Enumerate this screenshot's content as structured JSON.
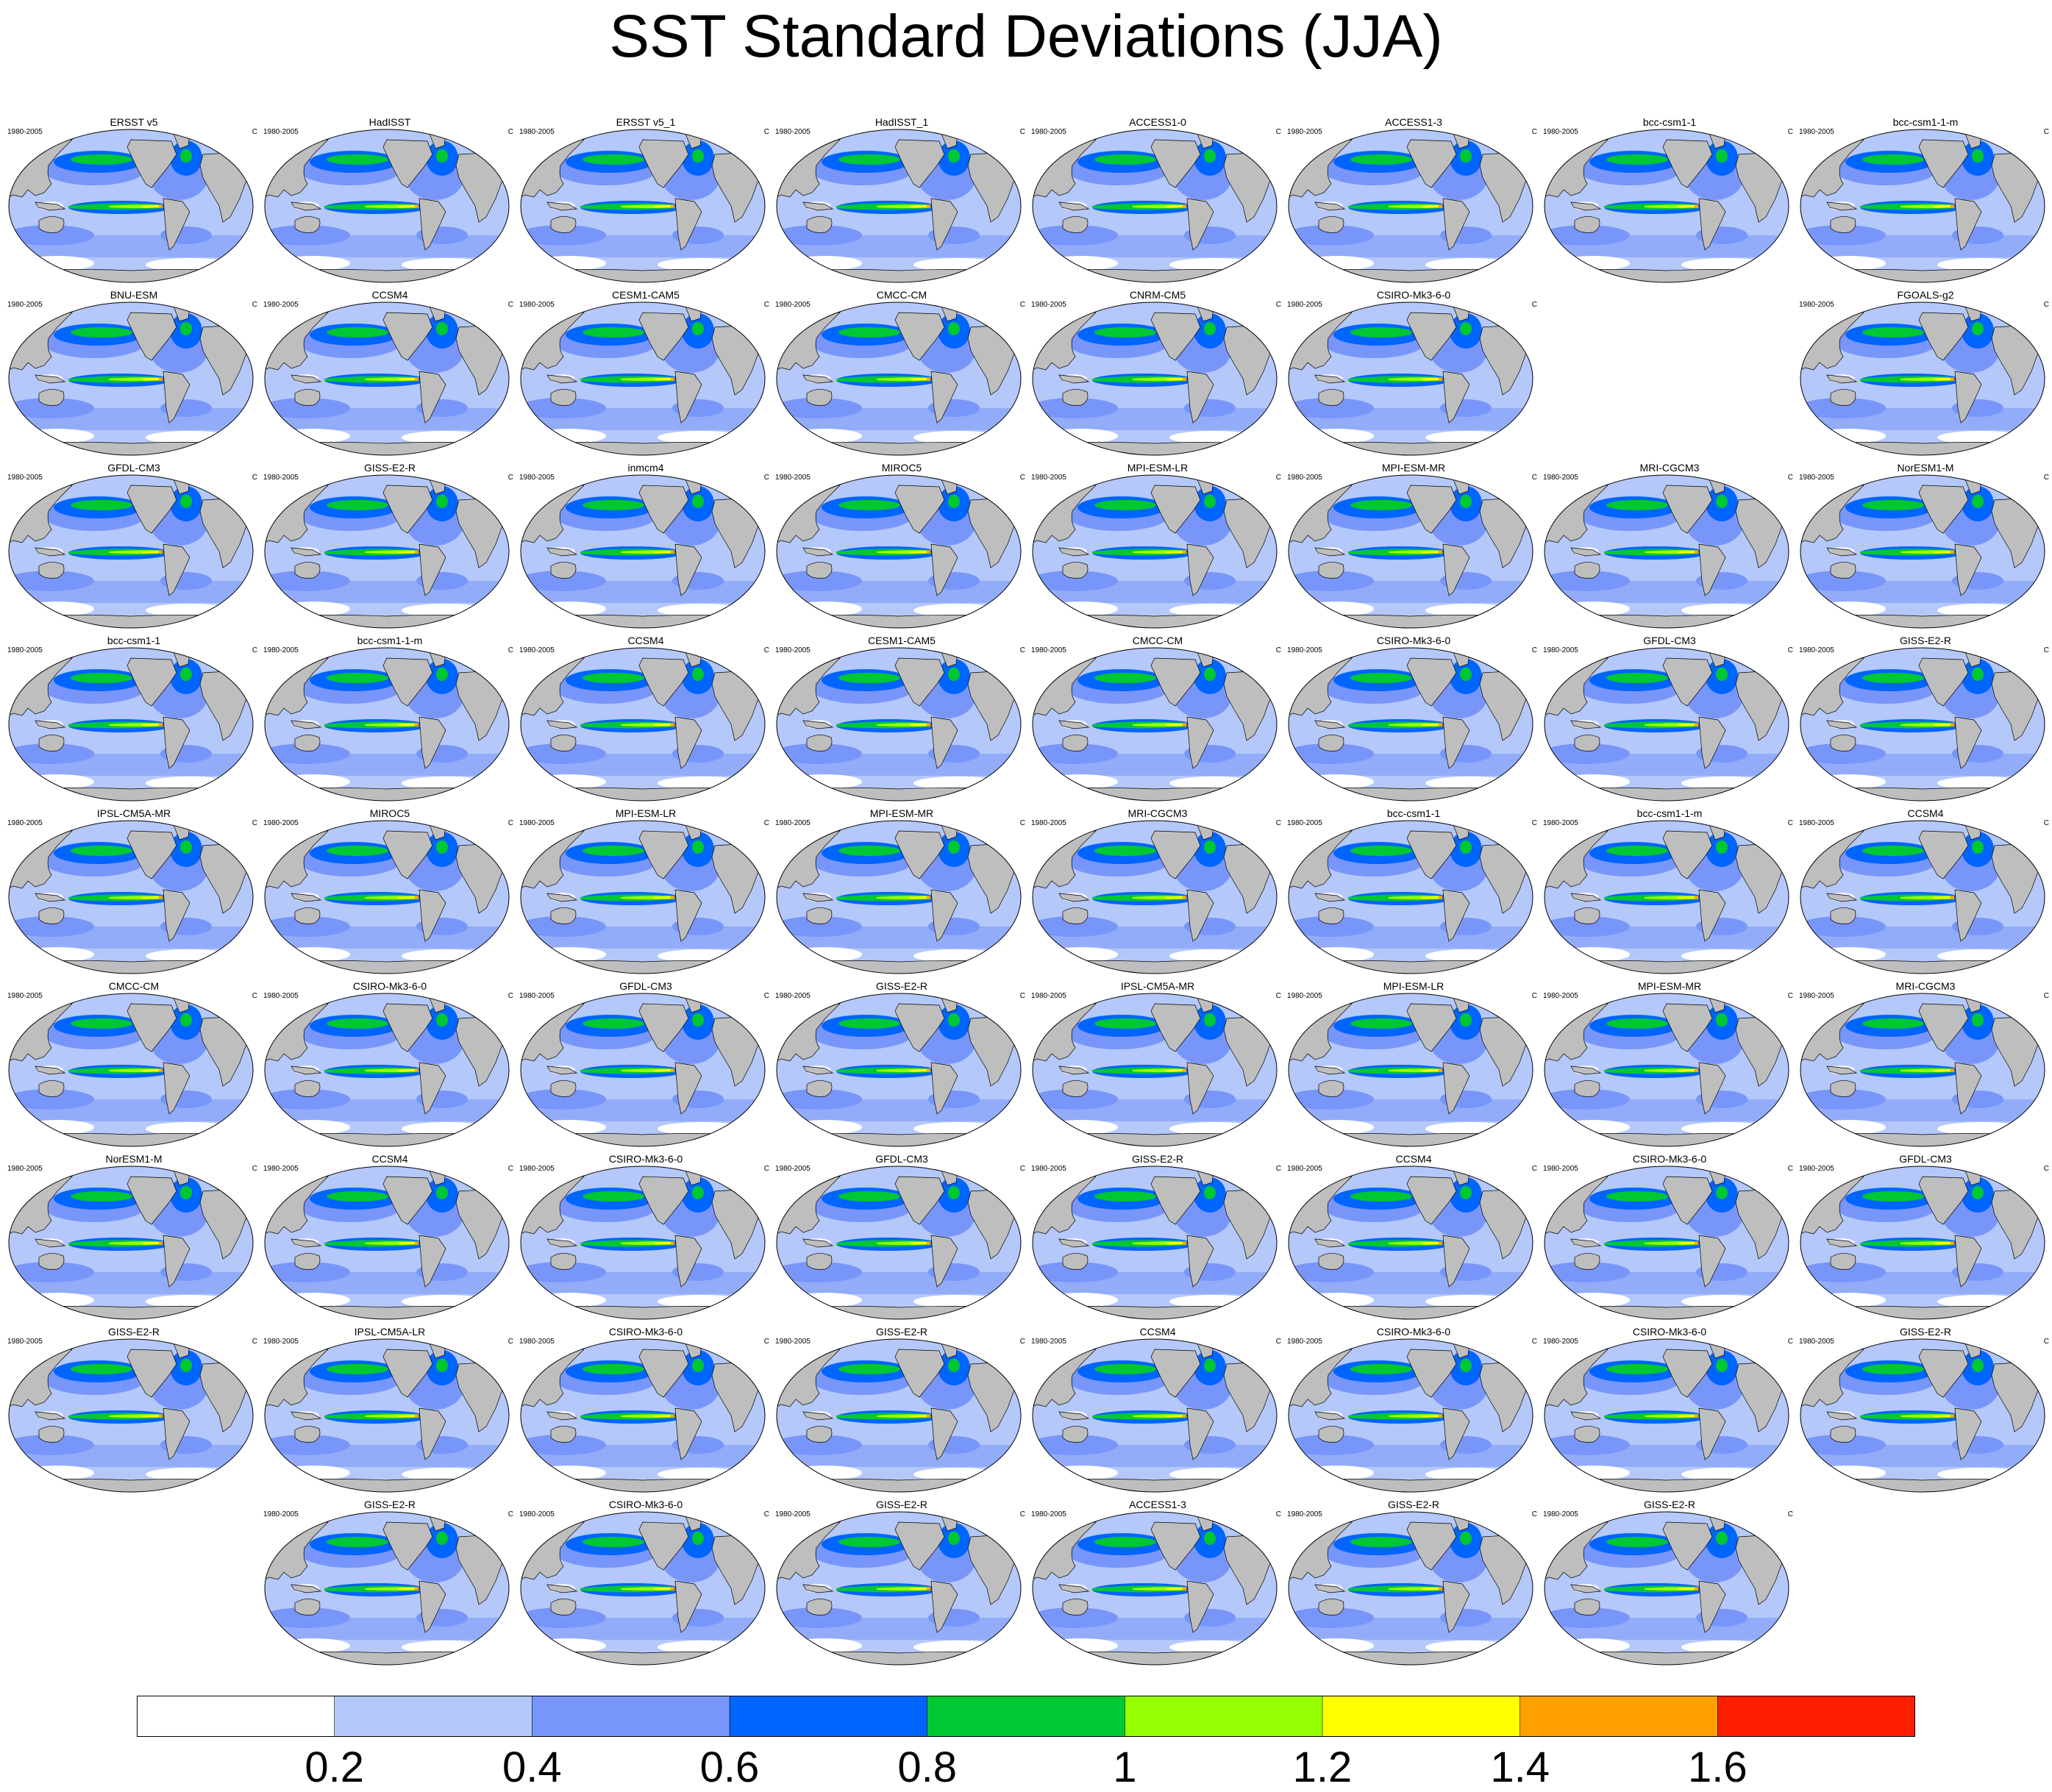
{
  "title": "SST Standard Deviations (JJA)",
  "period": "1980-2005",
  "units": "C",
  "grid_rows": [
    [
      "ERSST v5",
      "HadISST",
      "ERSST v5_1",
      "HadISST_1",
      "ACCESS1-0",
      "ACCESS1-3",
      "bcc-csm1-1",
      "bcc-csm1-1-m"
    ],
    [
      "BNU-ESM",
      "CCSM4",
      "CESM1-CAM5",
      "CMCC-CM",
      "CNRM-CM5",
      "CSIRO-Mk3-6-0",
      null,
      "FGOALS-g2"
    ],
    [
      "GFDL-CM3",
      "GISS-E2-R",
      "inmcm4",
      "MIROC5",
      "MPI-ESM-LR",
      "MPI-ESM-MR",
      "MRI-CGCM3",
      "NorESM1-M"
    ],
    [
      "bcc-csm1-1",
      "bcc-csm1-1-m",
      "CCSM4",
      "CESM1-CAM5",
      "CMCC-CM",
      "CSIRO-Mk3-6-0",
      "GFDL-CM3",
      "GISS-E2-R"
    ],
    [
      "IPSL-CM5A-MR",
      "MIROC5",
      "MPI-ESM-LR",
      "MPI-ESM-MR",
      "MRI-CGCM3",
      "bcc-csm1-1",
      "bcc-csm1-1-m",
      "CCSM4"
    ],
    [
      "CMCC-CM",
      "CSIRO-Mk3-6-0",
      "GFDL-CM3",
      "GISS-E2-R",
      "IPSL-CM5A-MR",
      "MPI-ESM-LR",
      "MPI-ESM-MR",
      "MRI-CGCM3"
    ],
    [
      "NorESM1-M",
      "CCSM4",
      "CSIRO-Mk3-6-0",
      "GFDL-CM3",
      "GISS-E2-R",
      "CCSM4",
      "CSIRO-Mk3-6-0",
      "GFDL-CM3"
    ],
    [
      "GISS-E2-R",
      "IPSL-CM5A-LR",
      "CSIRO-Mk3-6-0",
      "GISS-E2-R",
      "CCSM4",
      "CSIRO-Mk3-6-0",
      "CSIRO-Mk3-6-0",
      "GISS-E2-R"
    ],
    [
      null,
      "GISS-E2-R",
      "CSIRO-Mk3-6-0",
      "GISS-E2-R",
      "ACCESS1-3",
      "GISS-E2-R",
      "GISS-E2-R",
      null
    ]
  ],
  "colorbar": {
    "colors": [
      "#ffffff",
      "#b4c8fa",
      "#7896fa",
      "#0064ff",
      "#00c832",
      "#96ff00",
      "#ffff00",
      "#ffa000",
      "#ff1e00"
    ],
    "tick_labels": [
      "0.2",
      "0.4",
      "0.6",
      "0.8",
      "1",
      "1.2",
      "1.4",
      "1.6"
    ]
  },
  "map_colors": {
    "land": "#bebebe",
    "ocean_background": "#b4c8fa",
    "ocean_mid": "#7896fa",
    "ocean_high": "#0064ff",
    "band_1": "#00c832",
    "band_2": "#96ff00",
    "band_3": "#ffff00",
    "band_4": "#ffa000"
  }
}
